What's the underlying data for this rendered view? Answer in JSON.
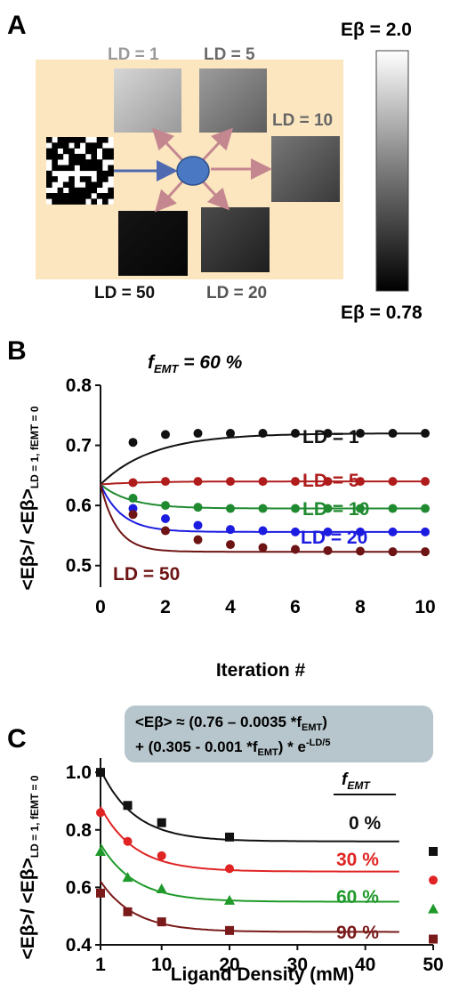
{
  "panel_a": {
    "letter": "A",
    "labels": {
      "ld1": "LD = 1",
      "ld5": "LD = 5",
      "ld10": "LD = 10",
      "ld20": "LD = 20",
      "ld50": "LD = 50"
    },
    "colorbar": {
      "top_label": "Eβ = 2.0",
      "bottom_label": "Eβ = 0.78"
    },
    "colors": {
      "background": "#fbe6bf",
      "center_node": "#4a78c2",
      "arrow_in": "#4f6ab0",
      "arrow_out": "#c48790"
    }
  },
  "chart_data": [
    {
      "panel": "B",
      "type": "line",
      "title": "f",
      "title_sub": "EMT",
      "title_rest": " = 60 %",
      "xlabel": "Iteration #",
      "ylabel": "<Eβ>/ <Eβ>",
      "ylabel_sub": "LD = 1, fEMT = 0",
      "xlim": [
        0,
        10
      ],
      "ylim": [
        0.47,
        0.8
      ],
      "x_ticks": [
        0,
        2,
        4,
        6,
        8,
        10
      ],
      "y_ticks": [
        0.5,
        0.6,
        0.7,
        0.8
      ],
      "x_tick_labels": [
        "0",
        "2",
        "4",
        "6",
        "8",
        "10"
      ],
      "y_tick_labels": [
        "0.5",
        "0.6",
        "0.7",
        "0.8"
      ],
      "x": [
        1,
        2,
        3,
        4,
        5,
        6,
        7,
        8,
        9,
        10
      ],
      "start_y": 0.635,
      "series": [
        {
          "name": "LD = 1",
          "color": "#111111",
          "values": [
            0.705,
            0.718,
            0.72,
            0.72,
            0.72,
            0.72,
            0.72,
            0.72,
            0.72,
            0.72
          ],
          "fit_end": 0.72,
          "fit_rate": 1.6
        },
        {
          "name": "LD = 5",
          "color": "#b01c1c",
          "values": [
            0.638,
            0.64,
            0.64,
            0.64,
            0.64,
            0.64,
            0.64,
            0.64,
            0.64,
            0.64
          ],
          "fit_end": 0.64,
          "fit_rate": 1.2
        },
        {
          "name": "LD = 10",
          "color": "#1f8a30",
          "values": [
            0.612,
            0.6,
            0.597,
            0.595,
            0.595,
            0.595,
            0.595,
            0.595,
            0.595,
            0.595
          ],
          "fit_end": 0.595,
          "fit_rate": 0.9
        },
        {
          "name": "LD = 20",
          "color": "#1c1ce0",
          "values": [
            0.595,
            0.578,
            0.567,
            0.56,
            0.558,
            0.556,
            0.556,
            0.556,
            0.556,
            0.556
          ],
          "fit_end": 0.556,
          "fit_rate": 0.65
        },
        {
          "name": "LD = 50",
          "color": "#6e1414",
          "values": [
            0.585,
            0.558,
            0.543,
            0.535,
            0.53,
            0.527,
            0.525,
            0.524,
            0.523,
            0.523
          ],
          "fit_end": 0.523,
          "fit_rate": 0.5
        }
      ]
    },
    {
      "panel": "C",
      "type": "scatter",
      "formula_line1": "<Eβ> ≈ (0.76 – 0.0035 *f",
      "formula_line1_sub": "EMT",
      "formula_line1_end": ")",
      "formula_line2": "+ (0.305 - 0.001 *f",
      "formula_line2_sub": "EMT",
      "formula_line2_mid": ")  * e",
      "formula_line2_sup": "-LD/5",
      "xlabel": "Ligand Density (mM)",
      "ylabel": "<Eβ>/ <Eβ>",
      "ylabel_sub": "LD = 1, fEMT = 0",
      "xlim": [
        1,
        50
      ],
      "ylim": [
        0.4,
        1.05
      ],
      "x_ticks": [
        1,
        10,
        20,
        30,
        40,
        50
      ],
      "y_ticks": [
        0.4,
        0.6,
        0.8,
        1.0
      ],
      "x_tick_labels": [
        "1",
        "10",
        "20",
        "30",
        "40",
        "50"
      ],
      "y_tick_labels": [
        "0.4",
        "0.6",
        "0.8",
        "1.0"
      ],
      "legend_title": "f",
      "legend_title_sub": "EMT",
      "x": [
        1,
        5,
        10,
        20,
        50
      ],
      "series": [
        {
          "name": "0 %",
          "color": "#111111",
          "marker": "square",
          "values": [
            1.0,
            0.885,
            0.825,
            0.775,
            0.725
          ],
          "fit_a": 0.76,
          "fit_b": 0.305
        },
        {
          "name": "30 %",
          "color": "#e02424",
          "marker": "circle",
          "values": [
            0.86,
            0.76,
            0.71,
            0.665,
            0.625
          ],
          "fit_a": 0.655,
          "fit_b": 0.275
        },
        {
          "name": "60 %",
          "color": "#1f9a2a",
          "marker": "triangle",
          "values": [
            0.725,
            0.635,
            0.595,
            0.555,
            0.525
          ],
          "fit_a": 0.55,
          "fit_b": 0.245
        },
        {
          "name": "90 %",
          "color": "#7a1a1a",
          "marker": "square",
          "values": [
            0.58,
            0.515,
            0.48,
            0.45,
            0.42
          ],
          "fit_a": 0.445,
          "fit_b": 0.215
        }
      ]
    }
  ]
}
